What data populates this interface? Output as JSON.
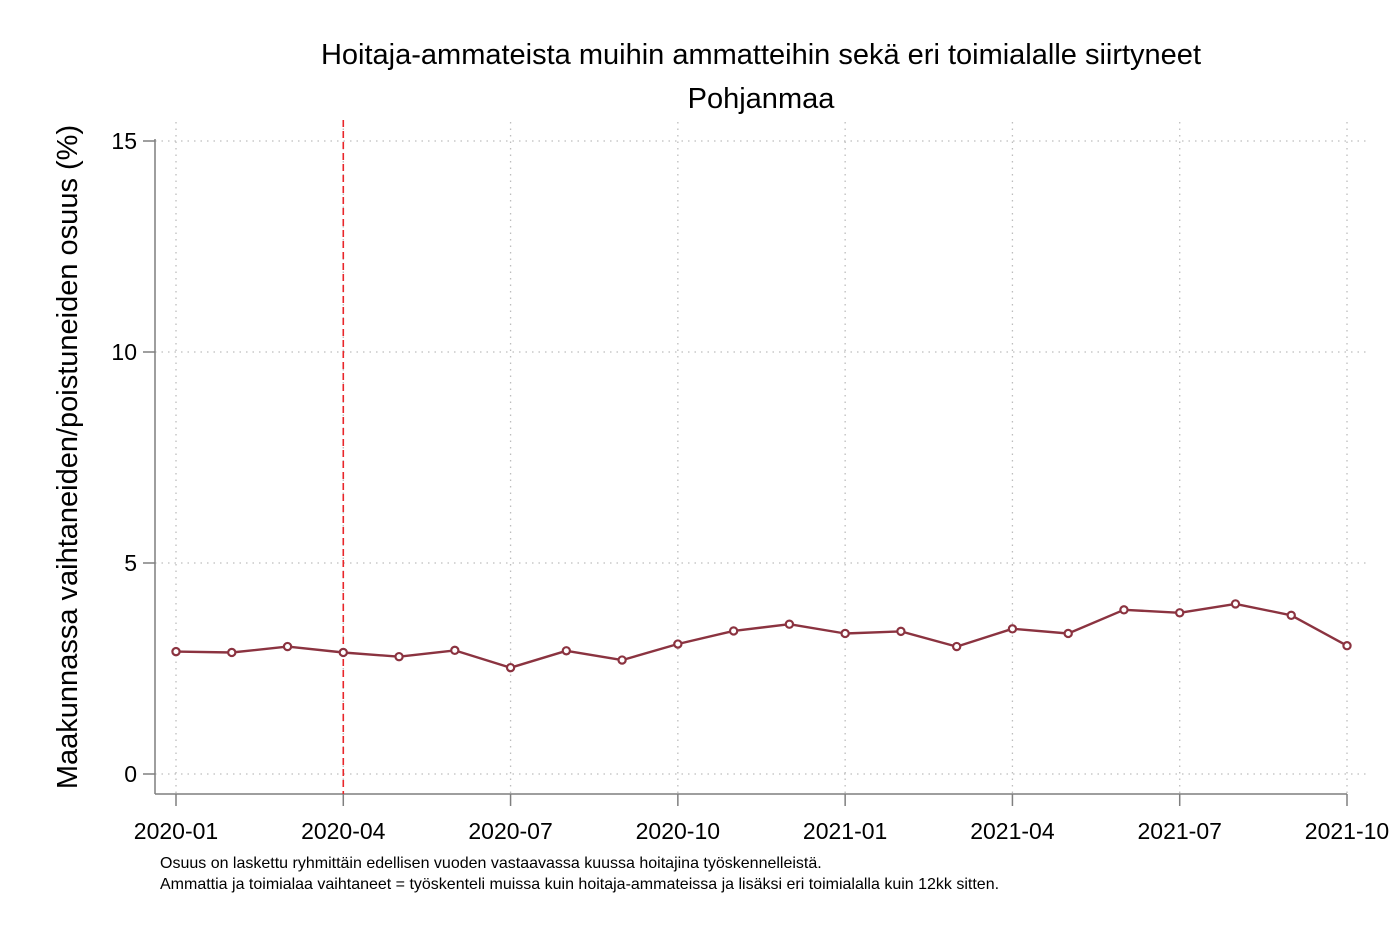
{
  "chart_data": {
    "type": "line",
    "title": "Hoitaja-ammateista muihin ammatteihin sekä eri toimialalle siirtyneet",
    "subtitle": "Pohjanmaa",
    "xlabel": "",
    "ylabel": "Maakunnassa vaihtaneiden/poistuneiden osuus (%)",
    "ylim": [
      0,
      15
    ],
    "yticks": [
      0,
      5,
      10,
      15
    ],
    "xticks": [
      "2020-01",
      "2020-04",
      "2020-07",
      "2020-10",
      "2021-01",
      "2021-04",
      "2021-07",
      "2021-10"
    ],
    "x": [
      "2020-01",
      "2020-02",
      "2020-03",
      "2020-04",
      "2020-05",
      "2020-06",
      "2020-07",
      "2020-08",
      "2020-09",
      "2020-10",
      "2020-11",
      "2020-12",
      "2021-01",
      "2021-02",
      "2021-03",
      "2021-04",
      "2021-05",
      "2021-06",
      "2021-07",
      "2021-08",
      "2021-09",
      "2021-10"
    ],
    "series": [
      {
        "values": [
          2.9,
          2.88,
          3.02,
          2.88,
          2.78,
          2.93,
          2.52,
          2.92,
          2.7,
          3.08,
          3.39,
          3.55,
          3.33,
          3.38,
          3.02,
          3.44,
          3.33,
          3.89,
          3.82,
          4.03,
          3.76,
          3.04
        ],
        "color": "#8b3340"
      }
    ],
    "vline": {
      "x": "2020-04",
      "color": "#e8262a",
      "style": "dashed"
    },
    "grid": true,
    "grid_style": "dotted",
    "legend": "none"
  },
  "notes": [
    "Osuus on laskettu ryhmittäin edellisen vuoden vastaavassa kuussa hoitajina työskennelleistä.",
    "Ammattia ja toimialaa vaihtaneet = työskenteli muissa kuin hoitaja-ammateissa ja lisäksi eri toimialalla kuin 12kk sitten."
  ]
}
